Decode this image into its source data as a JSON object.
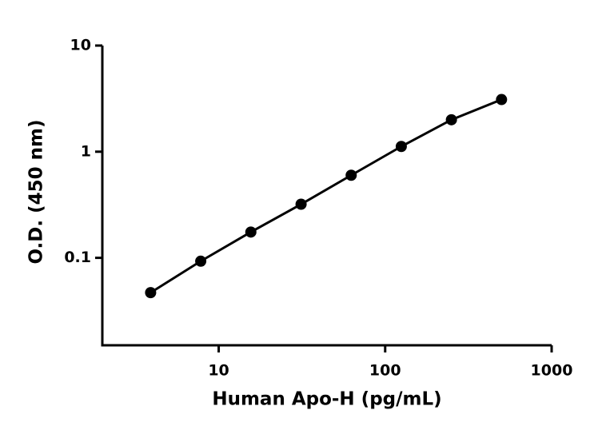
{
  "chart_data": {
    "type": "scatter",
    "x_label": "Human Apo-H (pg/mL)",
    "y_label": "O.D. (450 nm)",
    "x_log": true,
    "y_log": true,
    "xlim": [
      2,
      1000
    ],
    "ylim": [
      0.015,
      10
    ],
    "xticks": [
      10,
      100,
      1000
    ],
    "yticks": [
      0.1,
      1,
      10
    ],
    "series": [
      {
        "color": "#000000",
        "line": true,
        "x": [
          3.9,
          7.8,
          15.6,
          31.25,
          62.5,
          125,
          250,
          500
        ],
        "values": [
          0.047,
          0.093,
          0.175,
          0.32,
          0.6,
          1.12,
          2.0,
          3.1
        ]
      }
    ]
  }
}
